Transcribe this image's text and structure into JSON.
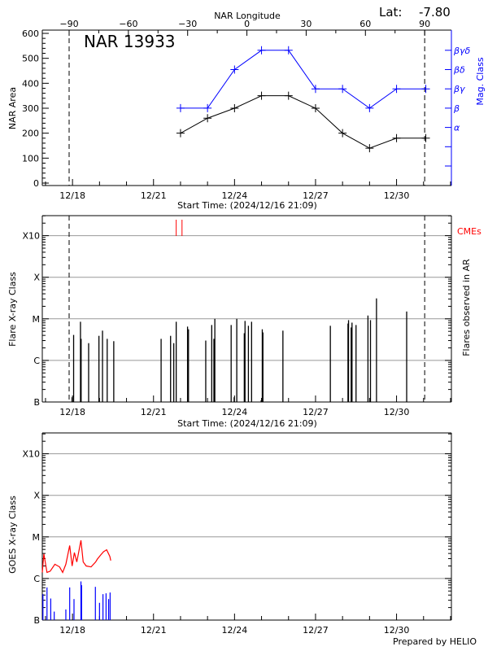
{
  "header": {
    "lat_label": "Lat:",
    "lat_value": "-7.80",
    "footer": "Prepared by HELIO"
  },
  "colors": {
    "area": "#000000",
    "mag": "#0000ff",
    "cme": "#ff0000",
    "goes_long": "#ff0000",
    "goes_short": "#0000ff",
    "grid": "#999999"
  },
  "chart_data": [
    {
      "type": "line",
      "title": "NAR 13933",
      "xlabel": "Start Time: (2024/12/16 21:09)",
      "ylabel": "NAR Area",
      "y2label": "Mag. Class",
      "top_axis_label": "NAR Longitude",
      "xlim": [
        "2024-12-16 21:09",
        "2025-01-01 00:45"
      ],
      "ylim": [
        0,
        600
      ],
      "x_ticks": [
        {
          "t": "2024-12-18 00:00",
          "label": "12/18"
        },
        {
          "t": "2024-12-21 00:00",
          "label": "12/21"
        },
        {
          "t": "2024-12-24 00:00",
          "label": "12/24"
        },
        {
          "t": "2024-12-27 00:00",
          "label": "12/27"
        },
        {
          "t": "2024-12-30 00:00",
          "label": "12/30"
        }
      ],
      "y_ticks": [
        0,
        100,
        200,
        300,
        400,
        500,
        600
      ],
      "longitude_ticks": [
        -90,
        -60,
        -30,
        0,
        30,
        60,
        90
      ],
      "longitude_limb_times": [
        "2024-12-17 21:00",
        "2024-12-31 01:00"
      ],
      "mag_class_ticks": [
        "",
        "",
        "α",
        "β",
        "βγ",
        "βδ",
        "βγδ"
      ],
      "dates": [
        "2024-12-22 00:00",
        "2024-12-23 00:00",
        "2024-12-24 00:00",
        "2024-12-25 00:00",
        "2024-12-26 00:00",
        "2024-12-27 00:00",
        "2024-12-28 00:00",
        "2024-12-29 00:00",
        "2024-12-30 00:00",
        "2024-12-31 02:00"
      ],
      "series": [
        {
          "name": "NAR Area",
          "values": [
            200,
            260,
            300,
            350,
            350,
            300,
            200,
            140,
            180,
            180
          ]
        },
        {
          "name": "Mag. Class",
          "values": [
            "β",
            "β",
            "βδ",
            "βγδ",
            "βγδ",
            "βγ",
            "βγ",
            "β",
            "βγ",
            "βγ"
          ]
        }
      ]
    },
    {
      "type": "bar",
      "xlabel": "Start Time: (2024/12/16 21:09)",
      "ylabel": "Flare X-ray Class",
      "y2label": "Flares observed in AR",
      "cme_label": "CMEs",
      "y_scale": "log",
      "y_ticks": [
        "B",
        "C",
        "M",
        "X",
        "X10"
      ],
      "limb_times": [
        "2024-12-17 21:00",
        "2024-12-31 01:00"
      ],
      "cmes": [
        "2024-12-21 20:10",
        "2024-12-22 01:20"
      ],
      "flares": [
        {
          "t": "2024-12-17 23:35",
          "c": "B1.3"
        },
        {
          "t": "2024-12-18 01:00",
          "c": "C4.1"
        },
        {
          "t": "2024-12-18 07:05",
          "c": "C8.5"
        },
        {
          "t": "2024-12-18 07:40",
          "c": "C3.3"
        },
        {
          "t": "2024-12-18 14:20",
          "c": "C2.6"
        },
        {
          "t": "2024-12-18 23:30",
          "c": "C3.9"
        },
        {
          "t": "2024-12-19 02:40",
          "c": "C5.2"
        },
        {
          "t": "2024-12-19 06:50",
          "c": "C3.3"
        },
        {
          "t": "2024-12-19 12:40",
          "c": "C2.9"
        },
        {
          "t": "2024-12-21 06:45",
          "c": "C3.3"
        },
        {
          "t": "2024-12-21 15:10",
          "c": "C3.9"
        },
        {
          "t": "2024-12-21 18:00",
          "c": "C2.6"
        },
        {
          "t": "2024-12-21 20:10",
          "c": "C8.5"
        },
        {
          "t": "2024-12-22 06:15",
          "c": "C6.5"
        },
        {
          "t": "2024-12-22 07:05",
          "c": "C5.6"
        },
        {
          "t": "2024-12-22 22:25",
          "c": "C3.0"
        },
        {
          "t": "2024-12-23 03:45",
          "c": "C7.1"
        },
        {
          "t": "2024-12-23 05:40",
          "c": "C3.3"
        },
        {
          "t": "2024-12-23 06:30",
          "c": "M1.0"
        },
        {
          "t": "2024-12-23 21:00",
          "c": "C7.1"
        },
        {
          "t": "2024-12-23 23:40",
          "c": "B1.3"
        },
        {
          "t": "2024-12-24 02:00",
          "c": "M1.0"
        },
        {
          "t": "2024-12-24 08:40",
          "c": "C4.5"
        },
        {
          "t": "2024-12-24 09:20",
          "c": "C8.9"
        },
        {
          "t": "2024-12-24 12:20",
          "c": "C6.8"
        },
        {
          "t": "2024-12-24 15:10",
          "c": "C8.5"
        },
        {
          "t": "2024-12-24 23:40",
          "c": "B1.1"
        },
        {
          "t": "2024-12-25 00:40",
          "c": "C5.6"
        },
        {
          "t": "2024-12-25 01:15",
          "c": "C4.7"
        },
        {
          "t": "2024-12-25 19:00",
          "c": "C5.2"
        },
        {
          "t": "2024-12-27 13:10",
          "c": "C6.8"
        },
        {
          "t": "2024-12-28 04:50",
          "c": "C7.7"
        },
        {
          "t": "2024-12-28 05:20",
          "c": "C9.3"
        },
        {
          "t": "2024-12-28 07:40",
          "c": "C6.2"
        },
        {
          "t": "2024-12-28 08:25",
          "c": "C8.1"
        },
        {
          "t": "2024-12-28 12:00",
          "c": "C7.1"
        },
        {
          "t": "2024-12-28 22:35",
          "c": "M1.2"
        },
        {
          "t": "2024-12-29 00:50",
          "c": "C9.3"
        },
        {
          "t": "2024-12-29 06:10",
          "c": "M3.1"
        },
        {
          "t": "2024-12-30 09:00",
          "c": "M1.5"
        }
      ]
    },
    {
      "type": "line",
      "ylabel": "GOES X-ray Class",
      "y_scale": "log",
      "y_ticks": [
        "B",
        "C",
        "M",
        "X",
        "X10"
      ],
      "long_channel": [
        {
          "t": "2024-12-16 21:09",
          "f": 1.4e-06
        },
        {
          "t": "2024-12-16 22:33",
          "f": 3.9e-06
        },
        {
          "t": "2024-12-17 01:20",
          "f": 1.4e-06
        },
        {
          "t": "2024-12-17 04:10",
          "f": 1.5e-06
        },
        {
          "t": "2024-12-17 08:20",
          "f": 2.2e-06
        },
        {
          "t": "2024-12-17 12:30",
          "f": 1.9e-06
        },
        {
          "t": "2024-12-17 15:15",
          "f": 1.4e-06
        },
        {
          "t": "2024-12-17 18:05",
          "f": 2.2e-06
        },
        {
          "t": "2024-12-17 21:30",
          "f": 6.2e-06
        },
        {
          "t": "2024-12-17 23:40",
          "f": 2e-06
        },
        {
          "t": "2024-12-18 01:40",
          "f": 4.2e-06
        },
        {
          "t": "2024-12-18 03:50",
          "f": 2.5e-06
        },
        {
          "t": "2024-12-18 07:30",
          "f": 8.3e-06
        },
        {
          "t": "2024-12-18 09:30",
          "f": 2.5e-06
        },
        {
          "t": "2024-12-18 12:10",
          "f": 2e-06
        },
        {
          "t": "2024-12-18 16:30",
          "f": 1.9e-06
        },
        {
          "t": "2024-12-18 20:35",
          "f": 2.5e-06
        },
        {
          "t": "2024-12-18 22:00",
          "f": 2.9e-06
        },
        {
          "t": "2024-12-19 00:45",
          "f": 3.6e-06
        },
        {
          "t": "2024-12-19 03:35",
          "f": 4.4e-06
        },
        {
          "t": "2024-12-19 06:20",
          "f": 4.9e-06
        },
        {
          "t": "2024-12-19 09:10",
          "f": 3.4e-06
        },
        {
          "t": "2024-12-19 10:00",
          "f": 2.7e-06
        }
      ],
      "short_channel": [
        {
          "t": "2024-12-16 21:43",
          "f": 4.2e-07
        },
        {
          "t": "2024-12-17 01:20",
          "f": 6.1e-07
        },
        {
          "t": "2024-12-17 04:40",
          "f": 3.3e-07
        },
        {
          "t": "2024-12-17 07:45",
          "f": 1.6e-07
        },
        {
          "t": "2024-12-17 18:05",
          "f": 1.8e-07
        },
        {
          "t": "2024-12-17 21:30",
          "f": 6.1e-07
        },
        {
          "t": "2024-12-18 01:20",
          "f": 3.2e-07
        },
        {
          "t": "2024-12-18 07:30",
          "f": 8.5e-07
        },
        {
          "t": "2024-12-18 08:05",
          "f": 6.9e-07
        },
        {
          "t": "2024-12-18 20:20",
          "f": 6.3e-07
        },
        {
          "t": "2024-12-19 00:00",
          "f": 2.6e-07
        },
        {
          "t": "2024-12-19 03:05",
          "f": 4.2e-07
        },
        {
          "t": "2024-12-19 05:50",
          "f": 4.4e-07
        },
        {
          "t": "2024-12-19 08:05",
          "f": 3.2e-07
        },
        {
          "t": "2024-12-19 09:25",
          "f": 4.6e-07
        }
      ]
    }
  ]
}
